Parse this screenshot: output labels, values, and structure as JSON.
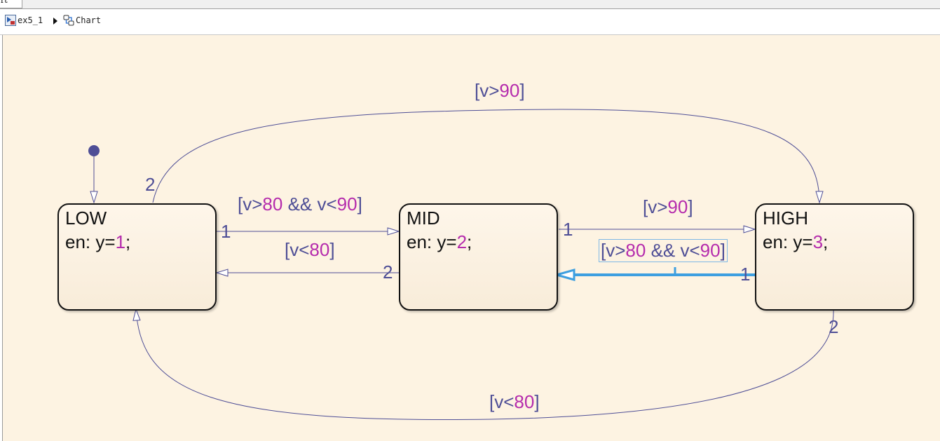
{
  "tab": {
    "label": "rt"
  },
  "breadcrumb": {
    "items": [
      {
        "label": "ex5_1",
        "icon": "simulink-model-icon"
      },
      {
        "label": "Chart",
        "icon": "stateflow-chart-icon"
      }
    ]
  },
  "colors": {
    "canvas": "#fdf3e2",
    "transition": "#4e4e96",
    "number": "#b52cad",
    "selected": "#3d9fe0"
  },
  "states": [
    {
      "name": "LOW",
      "action_prefix": "en: y=",
      "action_value": "1",
      "action_suffix": ";"
    },
    {
      "name": "MID",
      "action_prefix": "en: y=",
      "action_value": "2",
      "action_suffix": ";"
    },
    {
      "name": "HIGH",
      "action_prefix": "en: y=",
      "action_value": "3",
      "action_suffix": ";"
    }
  ],
  "transitions": {
    "low_to_high": {
      "pre": "[v>",
      "num": "90",
      "post": "]",
      "order": "2"
    },
    "low_to_mid": {
      "pre": "[v>",
      "num1": "80",
      "mid": " && v<",
      "num2": "90",
      "post": "]",
      "order": "1"
    },
    "mid_to_low": {
      "pre": "[v<",
      "num": "80",
      "post": "]",
      "order": "2"
    },
    "mid_to_high": {
      "pre": "[v>",
      "num": "90",
      "post": "]",
      "order": "1"
    },
    "high_to_mid": {
      "pre": "[v>",
      "num1": "80",
      "mid": " && v<",
      "num2": "90",
      "post": "]",
      "order": "1"
    },
    "high_to_low": {
      "pre": "[v<",
      "num": "80",
      "post": "]",
      "order": "2"
    }
  }
}
